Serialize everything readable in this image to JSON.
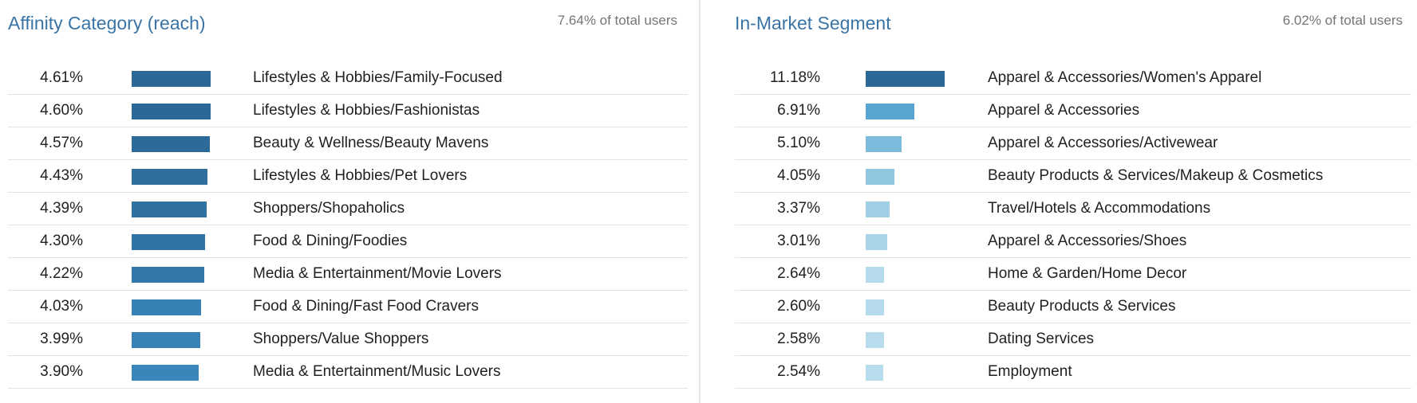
{
  "affinity": {
    "title": "Affinity Category (reach)",
    "total": "7.64% of total users",
    "bar_color_dark": "#2a6a98",
    "bar_color_mid": "#3a87bb",
    "rows": [
      {
        "pct": "4.61%",
        "value": 4.61,
        "label": "Lifestyles & Hobbies/Family-Focused",
        "color": "#2b6895"
      },
      {
        "pct": "4.60%",
        "value": 4.6,
        "label": "Lifestyles & Hobbies/Fashionistas",
        "color": "#2b6895"
      },
      {
        "pct": "4.57%",
        "value": 4.57,
        "label": "Beauty & Wellness/Beauty Mavens",
        "color": "#2c6b99"
      },
      {
        "pct": "4.43%",
        "value": 4.43,
        "label": "Lifestyles & Hobbies/Pet Lovers",
        "color": "#2e6f9e"
      },
      {
        "pct": "4.39%",
        "value": 4.39,
        "label": "Shoppers/Shopaholics",
        "color": "#2f71a1"
      },
      {
        "pct": "4.30%",
        "value": 4.3,
        "label": "Food & Dining/Foodies",
        "color": "#3074a5"
      },
      {
        "pct": "4.22%",
        "value": 4.22,
        "label": "Media & Entertainment/Movie Lovers",
        "color": "#3278aa"
      },
      {
        "pct": "4.03%",
        "value": 4.03,
        "label": "Food & Dining/Fast Food Cravers",
        "color": "#3681b5"
      },
      {
        "pct": "3.99%",
        "value": 3.99,
        "label": "Shoppers/Value Shoppers",
        "color": "#3783b8"
      },
      {
        "pct": "3.90%",
        "value": 3.9,
        "label": "Media & Entertainment/Music Lovers",
        "color": "#3986bb"
      }
    ]
  },
  "in_market": {
    "title": "In-Market Segment",
    "total": "6.02% of total users",
    "rows": [
      {
        "pct": "11.18%",
        "value": 11.18,
        "label": "Apparel & Accessories/Women's Apparel",
        "color": "#2b6895"
      },
      {
        "pct": "6.91%",
        "value": 6.91,
        "label": "Apparel & Accessories",
        "color": "#5aa6d2"
      },
      {
        "pct": "5.10%",
        "value": 5.1,
        "label": "Apparel & Accessories/Activewear",
        "color": "#7cbbdc"
      },
      {
        "pct": "4.05%",
        "value": 4.05,
        "label": "Beauty Products & Services/Makeup & Cosmetics",
        "color": "#92c7e2"
      },
      {
        "pct": "3.37%",
        "value": 3.37,
        "label": "Travel/Hotels & Accommodations",
        "color": "#a0cfe6"
      },
      {
        "pct": "3.01%",
        "value": 3.01,
        "label": "Apparel & Accessories/Shoes",
        "color": "#a9d3e8"
      },
      {
        "pct": "2.64%",
        "value": 2.64,
        "label": "Home & Garden/Home Decor",
        "color": "#b6dbec"
      },
      {
        "pct": "2.60%",
        "value": 2.6,
        "label": "Beauty Products & Services",
        "color": "#b6dbec"
      },
      {
        "pct": "2.58%",
        "value": 2.58,
        "label": "Dating Services",
        "color": "#b8dcec"
      },
      {
        "pct": "2.54%",
        "value": 2.54,
        "label": "Employment",
        "color": "#badded"
      }
    ]
  }
}
